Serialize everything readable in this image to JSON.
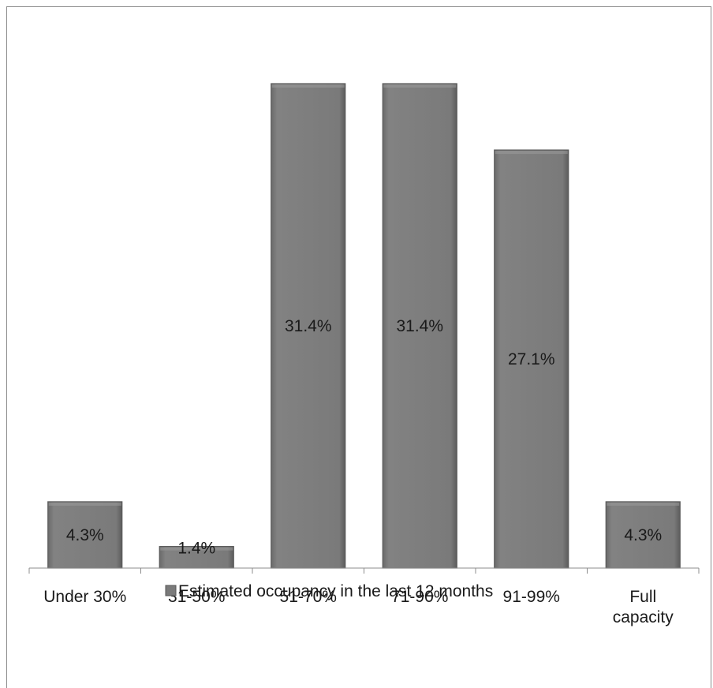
{
  "chart_data": {
    "type": "bar",
    "categories": [
      [
        "Under 30%"
      ],
      [
        "31-50%"
      ],
      [
        "51-70%"
      ],
      [
        "71-90%"
      ],
      [
        "91-99%"
      ],
      [
        "Full",
        "capacity"
      ]
    ],
    "series": [
      {
        "name": "Estimated occupancy in the last 12 months",
        "values": [
          4.3,
          1.4,
          31.4,
          31.4,
          27.1,
          4.3
        ],
        "labels": [
          "4.3%",
          "1.4%",
          "31.4%",
          "31.4%",
          "27.1%",
          "4.3%"
        ]
      }
    ],
    "ylim": [
      0,
      31.4
    ],
    "grid": false,
    "legend": "bottom",
    "colors": {
      "bar": "#7a7a7a",
      "bar_edge": "#5a5a5a",
      "bar_highlight": "#9a9a9a"
    }
  }
}
